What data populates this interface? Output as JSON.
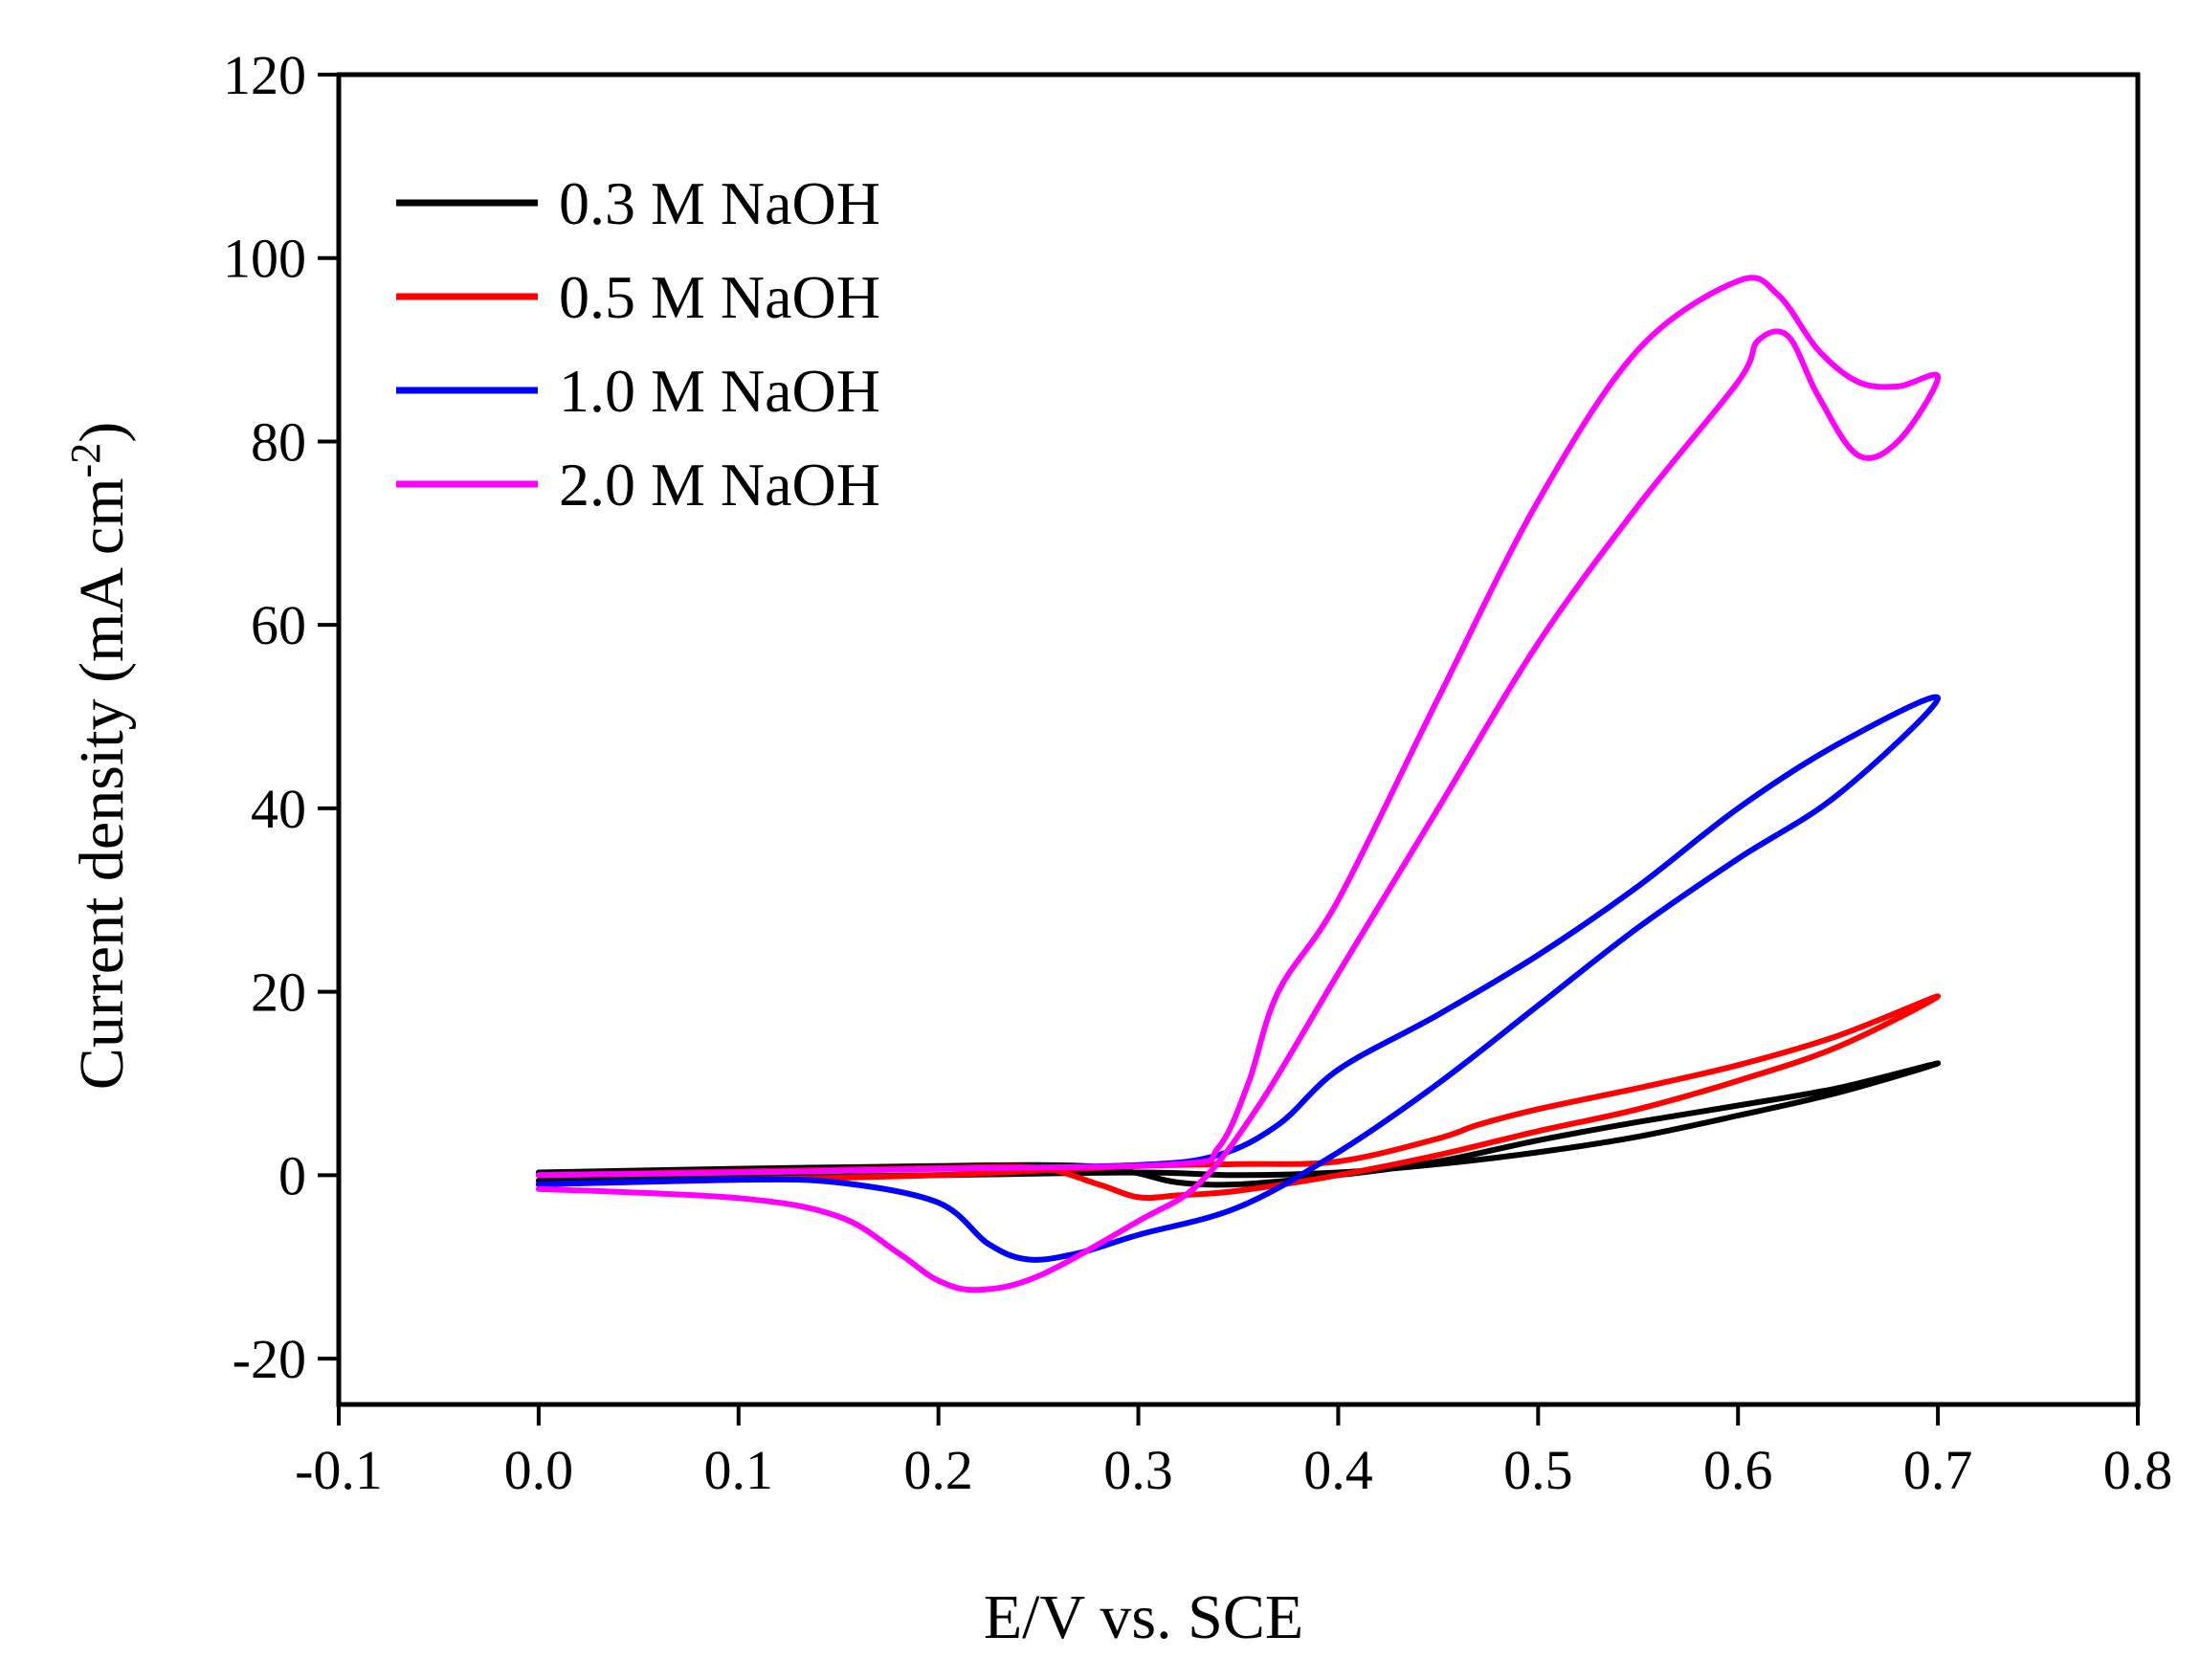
{
  "chart_data": {
    "type": "line",
    "title": "",
    "xlabel": "E/V vs. SCE",
    "ylabel": "Current density (mA cm",
    "ylabel_superscript": "-2",
    "ylabel_close": ")",
    "xlim": [
      -0.1,
      0.8
    ],
    "ylim": [
      -25,
      120
    ],
    "x_ticks": [
      -0.1,
      0.0,
      0.1,
      0.2,
      0.3,
      0.4,
      0.5,
      0.6,
      0.7,
      0.8
    ],
    "x_tick_labels": [
      "-0.1",
      "0.0",
      "0.1",
      "0.2",
      "0.3",
      "0.4",
      "0.5",
      "0.6",
      "0.7",
      "0.8"
    ],
    "y_ticks": [
      -20,
      0,
      20,
      40,
      60,
      80,
      100,
      120
    ],
    "y_tick_labels": [
      "-20",
      "0",
      "20",
      "40",
      "60",
      "80",
      "100",
      "120"
    ],
    "grid": false,
    "legend_position": "top-left",
    "series": [
      {
        "name": "0.3 M NaOH",
        "color": "#000000",
        "points": [
          [
            0.0,
            0.3
          ],
          [
            0.1,
            0.7
          ],
          [
            0.2,
            1.0
          ],
          [
            0.25,
            1.1
          ],
          [
            0.28,
            0.9
          ],
          [
            0.3,
            0.2
          ],
          [
            0.32,
            -0.8
          ],
          [
            0.35,
            -1.0
          ],
          [
            0.4,
            0.0
          ],
          [
            0.45,
            1.5
          ],
          [
            0.5,
            3.8
          ],
          [
            0.55,
            5.8
          ],
          [
            0.6,
            7.6
          ],
          [
            0.65,
            9.5
          ],
          [
            0.7,
            12.2
          ],
          [
            0.65,
            9.0
          ],
          [
            0.6,
            6.5
          ],
          [
            0.55,
            4.2
          ],
          [
            0.5,
            2.5
          ],
          [
            0.45,
            1.2
          ],
          [
            0.4,
            0.3
          ],
          [
            0.35,
            0.0
          ],
          [
            0.3,
            0.3
          ],
          [
            0.2,
            0.0
          ],
          [
            0.1,
            -0.3
          ],
          [
            0.0,
            -0.6
          ]
        ]
      },
      {
        "name": "0.5 M NaOH",
        "color": "#ff0000",
        "points": [
          [
            0.0,
            0.0
          ],
          [
            0.1,
            0.4
          ],
          [
            0.2,
            0.8
          ],
          [
            0.25,
            0.8
          ],
          [
            0.28,
            -1.0
          ],
          [
            0.3,
            -2.4
          ],
          [
            0.32,
            -2.2
          ],
          [
            0.35,
            -1.7
          ],
          [
            0.4,
            0.0
          ],
          [
            0.45,
            2.2
          ],
          [
            0.5,
            4.8
          ],
          [
            0.55,
            7.2
          ],
          [
            0.6,
            10.3
          ],
          [
            0.65,
            14.0
          ],
          [
            0.7,
            19.5
          ],
          [
            0.65,
            15.2
          ],
          [
            0.6,
            12.0
          ],
          [
            0.55,
            9.5
          ],
          [
            0.5,
            7.2
          ],
          [
            0.47,
            5.5
          ],
          [
            0.45,
            4.0
          ],
          [
            0.4,
            1.5
          ],
          [
            0.35,
            1.2
          ],
          [
            0.3,
            1.0
          ],
          [
            0.2,
            0.0
          ],
          [
            0.1,
            -0.5
          ],
          [
            0.0,
            -1.0
          ]
        ]
      },
      {
        "name": "1.0 M NaOH",
        "color": "#0000ff",
        "points": [
          [
            0.0,
            -1.0
          ],
          [
            0.1,
            -0.5
          ],
          [
            0.15,
            -0.8
          ],
          [
            0.2,
            -3.0
          ],
          [
            0.225,
            -7.5
          ],
          [
            0.245,
            -9.2
          ],
          [
            0.27,
            -8.5
          ],
          [
            0.3,
            -6.5
          ],
          [
            0.35,
            -3.5
          ],
          [
            0.4,
            2.5
          ],
          [
            0.45,
            10.0
          ],
          [
            0.5,
            18.5
          ],
          [
            0.55,
            27.0
          ],
          [
            0.6,
            34.5
          ],
          [
            0.65,
            41.5
          ],
          [
            0.7,
            52.0
          ],
          [
            0.65,
            47.0
          ],
          [
            0.6,
            40.0
          ],
          [
            0.55,
            31.5
          ],
          [
            0.5,
            24.0
          ],
          [
            0.45,
            17.5
          ],
          [
            0.4,
            11.5
          ],
          [
            0.37,
            5.5
          ],
          [
            0.34,
            2.2
          ],
          [
            0.3,
            1.1
          ],
          [
            0.2,
            0.7
          ],
          [
            0.1,
            0.3
          ],
          [
            0.0,
            0.0
          ]
        ]
      },
      {
        "name": "2.0 M NaOH",
        "color": "#ff00ff",
        "points": [
          [
            0.0,
            -1.5
          ],
          [
            0.1,
            -2.5
          ],
          [
            0.15,
            -4.5
          ],
          [
            0.18,
            -8.5
          ],
          [
            0.2,
            -11.5
          ],
          [
            0.22,
            -12.5
          ],
          [
            0.25,
            -11.0
          ],
          [
            0.3,
            -5.0
          ],
          [
            0.33,
            -1.0
          ],
          [
            0.36,
            7.5
          ],
          [
            0.4,
            22.0
          ],
          [
            0.45,
            40.0
          ],
          [
            0.5,
            58.0
          ],
          [
            0.55,
            73.0
          ],
          [
            0.6,
            86.5
          ],
          [
            0.61,
            91.0
          ],
          [
            0.625,
            91.5
          ],
          [
            0.64,
            85.0
          ],
          [
            0.66,
            78.5
          ],
          [
            0.68,
            80.0
          ],
          [
            0.7,
            87.0
          ],
          [
            0.68,
            86.0
          ],
          [
            0.66,
            86.5
          ],
          [
            0.64,
            90.0
          ],
          [
            0.62,
            96.0
          ],
          [
            0.6,
            97.5
          ],
          [
            0.55,
            90.0
          ],
          [
            0.5,
            73.5
          ],
          [
            0.45,
            52.0
          ],
          [
            0.4,
            30.0
          ],
          [
            0.37,
            20.0
          ],
          [
            0.355,
            10.0
          ],
          [
            0.34,
            3.0
          ],
          [
            0.32,
            1.2
          ],
          [
            0.2,
            0.7
          ],
          [
            0.1,
            0.3
          ],
          [
            0.0,
            0.0
          ]
        ]
      }
    ]
  }
}
